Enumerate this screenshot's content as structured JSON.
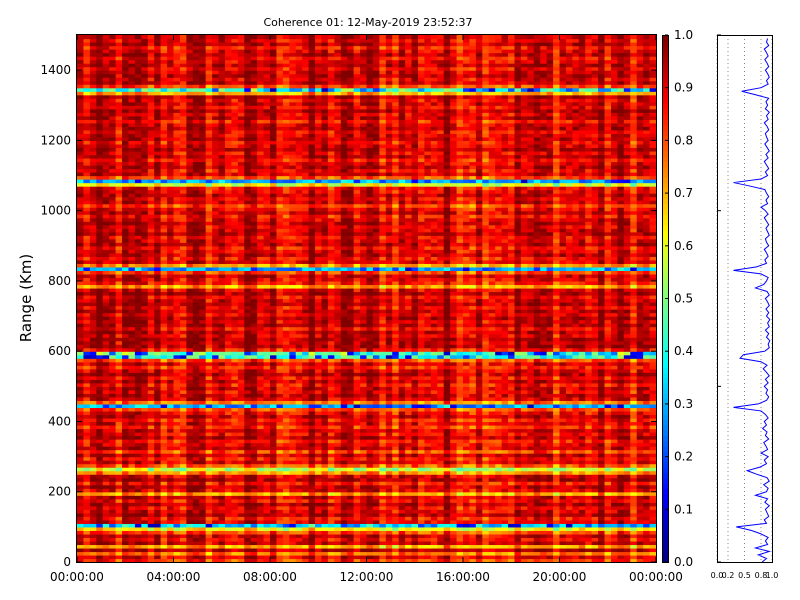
{
  "chart_data": [
    {
      "type": "heatmap",
      "title": "Coherence 01: 12-May-2019 23:52:37",
      "xlabel": "",
      "ylabel": "Range (Km)",
      "xlim": [
        "00:00:00",
        "24:00:00"
      ],
      "x_ticks": [
        "00:00:00",
        "04:00:00",
        "08:00:00",
        "12:00:00",
        "16:00:00",
        "20:00:00",
        "00:00:00"
      ],
      "ylim": [
        0,
        1500
      ],
      "y_ticks": [
        "0",
        "200",
        "400",
        "600",
        "800",
        "1000",
        "1200",
        "1400"
      ],
      "colorbar": {
        "range": [
          0.0,
          1.0
        ],
        "ticks": [
          "0.0",
          "0.1",
          "0.2",
          "0.3",
          "0.4",
          "0.5",
          "0.6",
          "0.7",
          "0.8",
          "0.9",
          "1.0"
        ],
        "colormap": "jet"
      },
      "range_profile_km": [
        [
          0,
          0.82
        ],
        [
          10,
          0.9
        ],
        [
          20,
          0.75
        ],
        [
          30,
          0.95
        ],
        [
          40,
          0.7
        ],
        [
          50,
          0.92
        ],
        [
          60,
          0.88
        ],
        [
          70,
          0.93
        ],
        [
          80,
          0.8
        ],
        [
          90,
          0.62
        ],
        [
          100,
          0.35
        ],
        [
          110,
          0.9
        ],
        [
          120,
          0.86
        ],
        [
          130,
          0.94
        ],
        [
          140,
          0.91
        ],
        [
          150,
          0.88
        ],
        [
          160,
          0.95
        ],
        [
          170,
          0.87
        ],
        [
          180,
          0.92
        ],
        [
          190,
          0.7
        ],
        [
          200,
          0.9
        ],
        [
          210,
          0.93
        ],
        [
          220,
          0.85
        ],
        [
          230,
          0.95
        ],
        [
          240,
          0.91
        ],
        [
          250,
          0.72
        ],
        [
          260,
          0.55
        ],
        [
          270,
          0.78
        ],
        [
          280,
          0.9
        ],
        [
          290,
          0.86
        ],
        [
          300,
          0.93
        ],
        [
          310,
          0.8
        ],
        [
          320,
          0.92
        ],
        [
          330,
          0.89
        ],
        [
          340,
          0.85
        ],
        [
          350,
          0.94
        ],
        [
          360,
          0.88
        ],
        [
          370,
          0.91
        ],
        [
          380,
          0.83
        ],
        [
          390,
          0.9
        ],
        [
          400,
          0.86
        ],
        [
          410,
          0.93
        ],
        [
          420,
          0.88
        ],
        [
          430,
          0.8
        ],
        [
          440,
          0.3
        ],
        [
          450,
          0.75
        ],
        [
          460,
          0.9
        ],
        [
          470,
          0.94
        ],
        [
          480,
          0.89
        ],
        [
          490,
          0.92
        ],
        [
          500,
          0.86
        ],
        [
          510,
          0.93
        ],
        [
          520,
          0.88
        ],
        [
          530,
          0.95
        ],
        [
          540,
          0.9
        ],
        [
          550,
          0.84
        ],
        [
          560,
          0.91
        ],
        [
          570,
          0.8
        ],
        [
          580,
          0.42
        ],
        [
          590,
          0.48
        ],
        [
          600,
          0.87
        ],
        [
          610,
          0.95
        ],
        [
          620,
          0.93
        ],
        [
          630,
          0.96
        ],
        [
          640,
          0.9
        ],
        [
          650,
          0.94
        ],
        [
          660,
          0.88
        ],
        [
          670,
          0.95
        ],
        [
          680,
          0.92
        ],
        [
          690,
          0.96
        ],
        [
          700,
          0.9
        ],
        [
          710,
          0.94
        ],
        [
          720,
          0.89
        ],
        [
          730,
          0.95
        ],
        [
          740,
          0.92
        ],
        [
          750,
          0.88
        ],
        [
          760,
          0.95
        ],
        [
          770,
          0.91
        ],
        [
          780,
          0.7
        ],
        [
          790,
          0.85
        ],
        [
          800,
          0.9
        ],
        [
          810,
          0.93
        ],
        [
          820,
          0.8
        ],
        [
          830,
          0.3
        ],
        [
          840,
          0.72
        ],
        [
          850,
          0.9
        ],
        [
          860,
          0.87
        ],
        [
          870,
          0.93
        ],
        [
          880,
          0.9
        ],
        [
          890,
          0.86
        ],
        [
          900,
          0.94
        ],
        [
          910,
          0.9
        ],
        [
          920,
          0.88
        ],
        [
          930,
          0.95
        ],
        [
          940,
          0.92
        ],
        [
          950,
          0.89
        ],
        [
          960,
          0.94
        ],
        [
          970,
          0.9
        ],
        [
          980,
          0.86
        ],
        [
          990,
          0.93
        ],
        [
          1000,
          0.88
        ],
        [
          1010,
          0.8
        ],
        [
          1020,
          0.92
        ],
        [
          1030,
          0.89
        ],
        [
          1040,
          0.94
        ],
        [
          1050,
          0.9
        ],
        [
          1060,
          0.87
        ],
        [
          1070,
          0.6
        ],
        [
          1080,
          0.3
        ],
        [
          1090,
          0.8
        ],
        [
          1100,
          0.92
        ],
        [
          1110,
          0.88
        ],
        [
          1120,
          0.94
        ],
        [
          1130,
          0.9
        ],
        [
          1140,
          0.86
        ],
        [
          1150,
          0.93
        ],
        [
          1160,
          0.89
        ],
        [
          1170,
          0.95
        ],
        [
          1180,
          0.91
        ],
        [
          1190,
          0.87
        ],
        [
          1200,
          0.93
        ],
        [
          1210,
          0.9
        ],
        [
          1220,
          0.88
        ],
        [
          1230,
          0.94
        ],
        [
          1240,
          0.91
        ],
        [
          1250,
          0.86
        ],
        [
          1260,
          0.93
        ],
        [
          1270,
          0.9
        ],
        [
          1280,
          0.95
        ],
        [
          1290,
          0.88
        ],
        [
          1300,
          0.92
        ],
        [
          1310,
          0.89
        ],
        [
          1320,
          0.94
        ],
        [
          1330,
          0.7
        ],
        [
          1340,
          0.45
        ],
        [
          1350,
          0.8
        ],
        [
          1360,
          0.93
        ],
        [
          1370,
          0.9
        ],
        [
          1380,
          0.95
        ],
        [
          1390,
          0.92
        ],
        [
          1400,
          0.88
        ],
        [
          1410,
          0.94
        ],
        [
          1420,
          0.91
        ],
        [
          1430,
          0.87
        ],
        [
          1440,
          0.93
        ],
        [
          1450,
          0.9
        ],
        [
          1460,
          0.86
        ],
        [
          1470,
          0.94
        ],
        [
          1480,
          0.9
        ],
        [
          1490,
          0.92
        ]
      ]
    },
    {
      "type": "line",
      "title": "",
      "xlabel": "",
      "ylabel": "",
      "xlim": [
        0.0,
        1.0
      ],
      "x_ticks": [
        "0.0",
        "0.2",
        "0.5",
        "0.8",
        "1.0"
      ],
      "ylim": [
        0,
        1500
      ],
      "grid": "vertical dotted",
      "series_ref": "range_profile_km"
    }
  ],
  "colors": {
    "axis": "#000000",
    "profile_line": "#0000ff",
    "grid": "#555555"
  }
}
